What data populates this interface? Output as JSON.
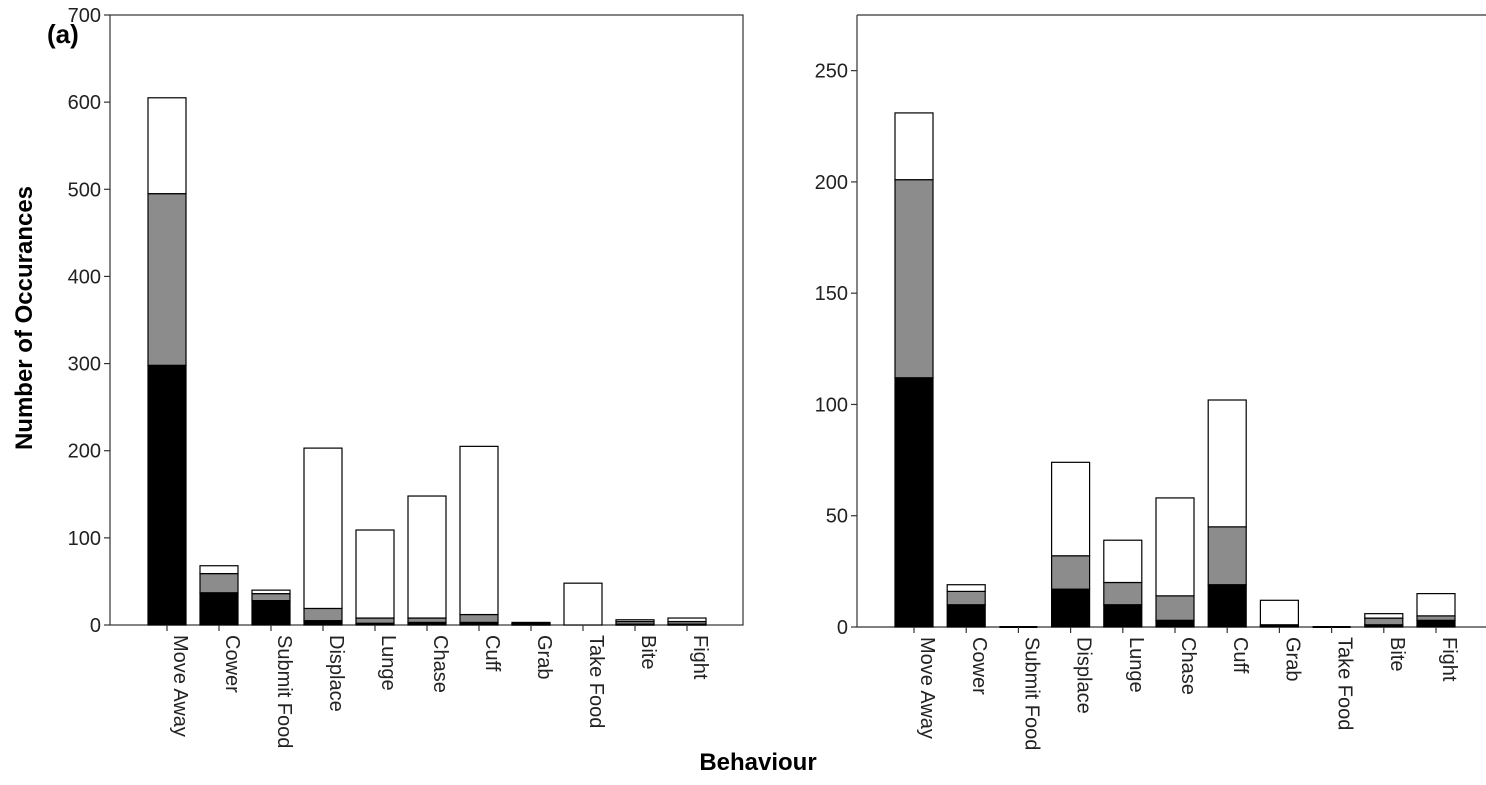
{
  "figure": {
    "xlabel": "Behaviour",
    "ylabel": "Number of Occurances",
    "colors": {
      "black_segment": "#000000",
      "grey_segment": "#8c8c8c",
      "white_segment": "#ffffff",
      "outline": "#000000"
    }
  },
  "chart_data": [
    {
      "type": "bar",
      "stacked": true,
      "panel_label": "(a)",
      "xlabel": "Behaviour",
      "ylabel": "Number of Occurances",
      "ylim": [
        0,
        700
      ],
      "yticks": [
        0,
        100,
        200,
        300,
        400,
        500,
        600,
        700
      ],
      "grid": false,
      "categories": [
        "Move Away",
        "Cower",
        "Submit Food",
        "Displace",
        "Lunge",
        "Chase",
        "Cuff",
        "Grab",
        "Take Food",
        "Bite",
        "Fight"
      ],
      "series": [
        {
          "color": "#000000",
          "values": [
            298,
            37,
            28,
            5,
            2,
            3,
            3,
            1,
            0,
            1,
            1
          ]
        },
        {
          "color": "#8c8c8c",
          "values": [
            197,
            22,
            8,
            14,
            6,
            5,
            9,
            1,
            0,
            3,
            3
          ]
        },
        {
          "color": "#ffffff",
          "values": [
            110,
            9,
            4,
            184,
            101,
            140,
            193,
            1,
            48,
            2,
            4
          ]
        }
      ]
    },
    {
      "type": "bar",
      "stacked": true,
      "panel_label": "",
      "xlabel": "Behaviour",
      "ylabel": "",
      "ylim": [
        0,
        275
      ],
      "yticks": [
        0,
        50,
        100,
        150,
        200,
        250
      ],
      "grid": false,
      "categories": [
        "Move Away",
        "Cower",
        "Submit Food",
        "Displace",
        "Lunge",
        "Chase",
        "Cuff",
        "Grab",
        "Take Food",
        "Bite",
        "Fight"
      ],
      "series": [
        {
          "color": "#000000",
          "values": [
            112,
            10,
            0,
            17,
            10,
            3,
            19,
            0.5,
            0,
            1,
            3
          ]
        },
        {
          "color": "#8c8c8c",
          "values": [
            89,
            6,
            0,
            15,
            10,
            11,
            26,
            0.5,
            0,
            3,
            2
          ]
        },
        {
          "color": "#ffffff",
          "values": [
            30,
            3,
            0,
            42,
            19,
            44,
            57,
            11,
            0,
            2,
            10
          ]
        }
      ]
    }
  ]
}
